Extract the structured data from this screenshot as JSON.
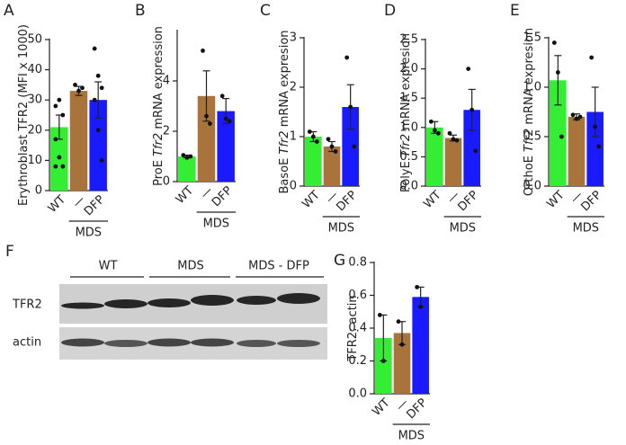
{
  "chart_data": [
    {
      "type": "bar",
      "letter": "A",
      "ylabel_parts": [
        {
          "text": "Erythroblast TFR2 (MFI x 1000)"
        }
      ],
      "categories": [
        "WT",
        "—",
        "DFP"
      ],
      "group_label": "MDS",
      "colors": [
        "#33ee33",
        "#a8743c",
        "#1a1aff"
      ],
      "values": [
        21,
        33,
        30
      ],
      "errors": [
        4,
        1.5,
        6
      ],
      "points": [
        [
          28,
          30,
          25,
          17,
          11,
          8,
          8
        ],
        [
          35,
          33,
          34
        ],
        [
          47,
          38,
          34,
          30,
          20,
          10
        ]
      ],
      "ylim": [
        0,
        50
      ],
      "yticks": [
        0,
        10,
        20,
        30,
        40,
        50
      ]
    },
    {
      "type": "bar",
      "letter": "B",
      "ylabel_parts": [
        {
          "text": "ProE "
        },
        {
          "text": "Tfr2",
          "italic": true
        },
        {
          "text": " mRNA expression"
        }
      ],
      "categories": [
        "WT",
        "—",
        "DFP"
      ],
      "group_label": "MDS",
      "colors": [
        "#33ee33",
        "#a8743c",
        "#1a1aff"
      ],
      "values": [
        1.0,
        3.4,
        2.8
      ],
      "errors": [
        0.05,
        1.0,
        0.5
      ],
      "points": [
        [
          1.05,
          0.95,
          1.0
        ],
        [
          5.2,
          2.6,
          2.3
        ],
        [
          3.4,
          2.5,
          2.4
        ]
      ],
      "ylim": [
        0,
        6
      ],
      "yticks": [
        0,
        2,
        4
      ]
    },
    {
      "type": "bar",
      "letter": "C",
      "ylabel_parts": [
        {
          "text": "BasoE "
        },
        {
          "text": "Tfr2",
          "italic": true
        },
        {
          "text": " mRNA expresion"
        }
      ],
      "categories": [
        "WT",
        "—",
        "DFP"
      ],
      "group_label": "MDS",
      "colors": [
        "#33ee33",
        "#a8743c",
        "#1a1aff"
      ],
      "values": [
        1.0,
        0.8,
        1.6
      ],
      "errors": [
        0.1,
        0.1,
        0.45
      ],
      "points": [
        [
          1.1,
          1.0,
          0.9
        ],
        [
          0.95,
          0.8,
          0.7
        ],
        [
          2.6,
          1.6,
          0.8
        ]
      ],
      "ylim": [
        0,
        3
      ],
      "yticks": [
        0,
        1,
        2,
        3
      ]
    },
    {
      "type": "bar",
      "letter": "D",
      "ylabel_parts": [
        {
          "text": "PolyE "
        },
        {
          "text": "Tfr2",
          "italic": true
        },
        {
          "text": " mRNA expresion"
        }
      ],
      "categories": [
        "WT",
        "—",
        "DFP"
      ],
      "group_label": "MDS",
      "colors": [
        "#33ee33",
        "#a8743c",
        "#1a1aff"
      ],
      "values": [
        1.0,
        0.82,
        1.3
      ],
      "errors": [
        0.1,
        0.05,
        0.35
      ],
      "points": [
        [
          1.1,
          0.95,
          0.9
        ],
        [
          0.9,
          0.8,
          0.78
        ],
        [
          2.0,
          1.3,
          0.6
        ]
      ],
      "ylim": [
        0,
        2.5
      ],
      "yticks": [
        {
          "value": 0,
          "label": "0.0"
        },
        0.5,
        {
          "value": 1,
          "label": "1.0"
        },
        1.5,
        {
          "value": 2,
          "label": "2.0"
        },
        2.5
      ]
    },
    {
      "type": "bar",
      "letter": "E",
      "ylabel_parts": [
        {
          "text": "OrthoE "
        },
        {
          "text": "Tfr2",
          "italic": true
        },
        {
          "text": " mRNA expresion"
        }
      ],
      "categories": [
        "WT",
        "—",
        "DFP"
      ],
      "group_label": "MDS",
      "colors": [
        "#33ee33",
        "#a8743c",
        "#1a1aff"
      ],
      "values": [
        1.07,
        0.7,
        0.75
      ],
      "errors": [
        0.25,
        0.03,
        0.25
      ],
      "points": [
        [
          1.45,
          1.15,
          0.5
        ],
        [
          0.72,
          0.68,
          0.7
        ],
        [
          1.3,
          0.6,
          0.4
        ]
      ],
      "ylim": [
        0,
        1.5
      ],
      "yticks": [
        {
          "value": 0,
          "label": "0.0"
        },
        0.5,
        {
          "value": 1,
          "label": "1.0"
        },
        1.5
      ]
    },
    {
      "type": "bar",
      "letter": "G",
      "ylabel_parts": [
        {
          "text": "TFR2: actin"
        }
      ],
      "categories": [
        "WT",
        "—",
        "DFP"
      ],
      "group_label": "MDS",
      "colors": [
        "#33ee33",
        "#a8743c",
        "#1a1aff"
      ],
      "values": [
        0.34,
        0.37,
        0.59
      ],
      "errors": [
        0.14,
        0.07,
        0.06
      ],
      "points": [
        [
          0.48,
          0.2
        ],
        [
          0.44,
          0.3
        ],
        [
          0.65,
          0.53
        ]
      ],
      "ylim": [
        0,
        0.8
      ],
      "yticks": [
        {
          "value": 0,
          "label": "0.0"
        },
        0.2,
        0.4,
        0.6,
        0.8
      ]
    }
  ],
  "blot": {
    "letter": "F",
    "groups": [
      "WT",
      "MDS",
      "MDS - DFP"
    ],
    "rows": [
      "TFR2",
      "actin"
    ]
  }
}
